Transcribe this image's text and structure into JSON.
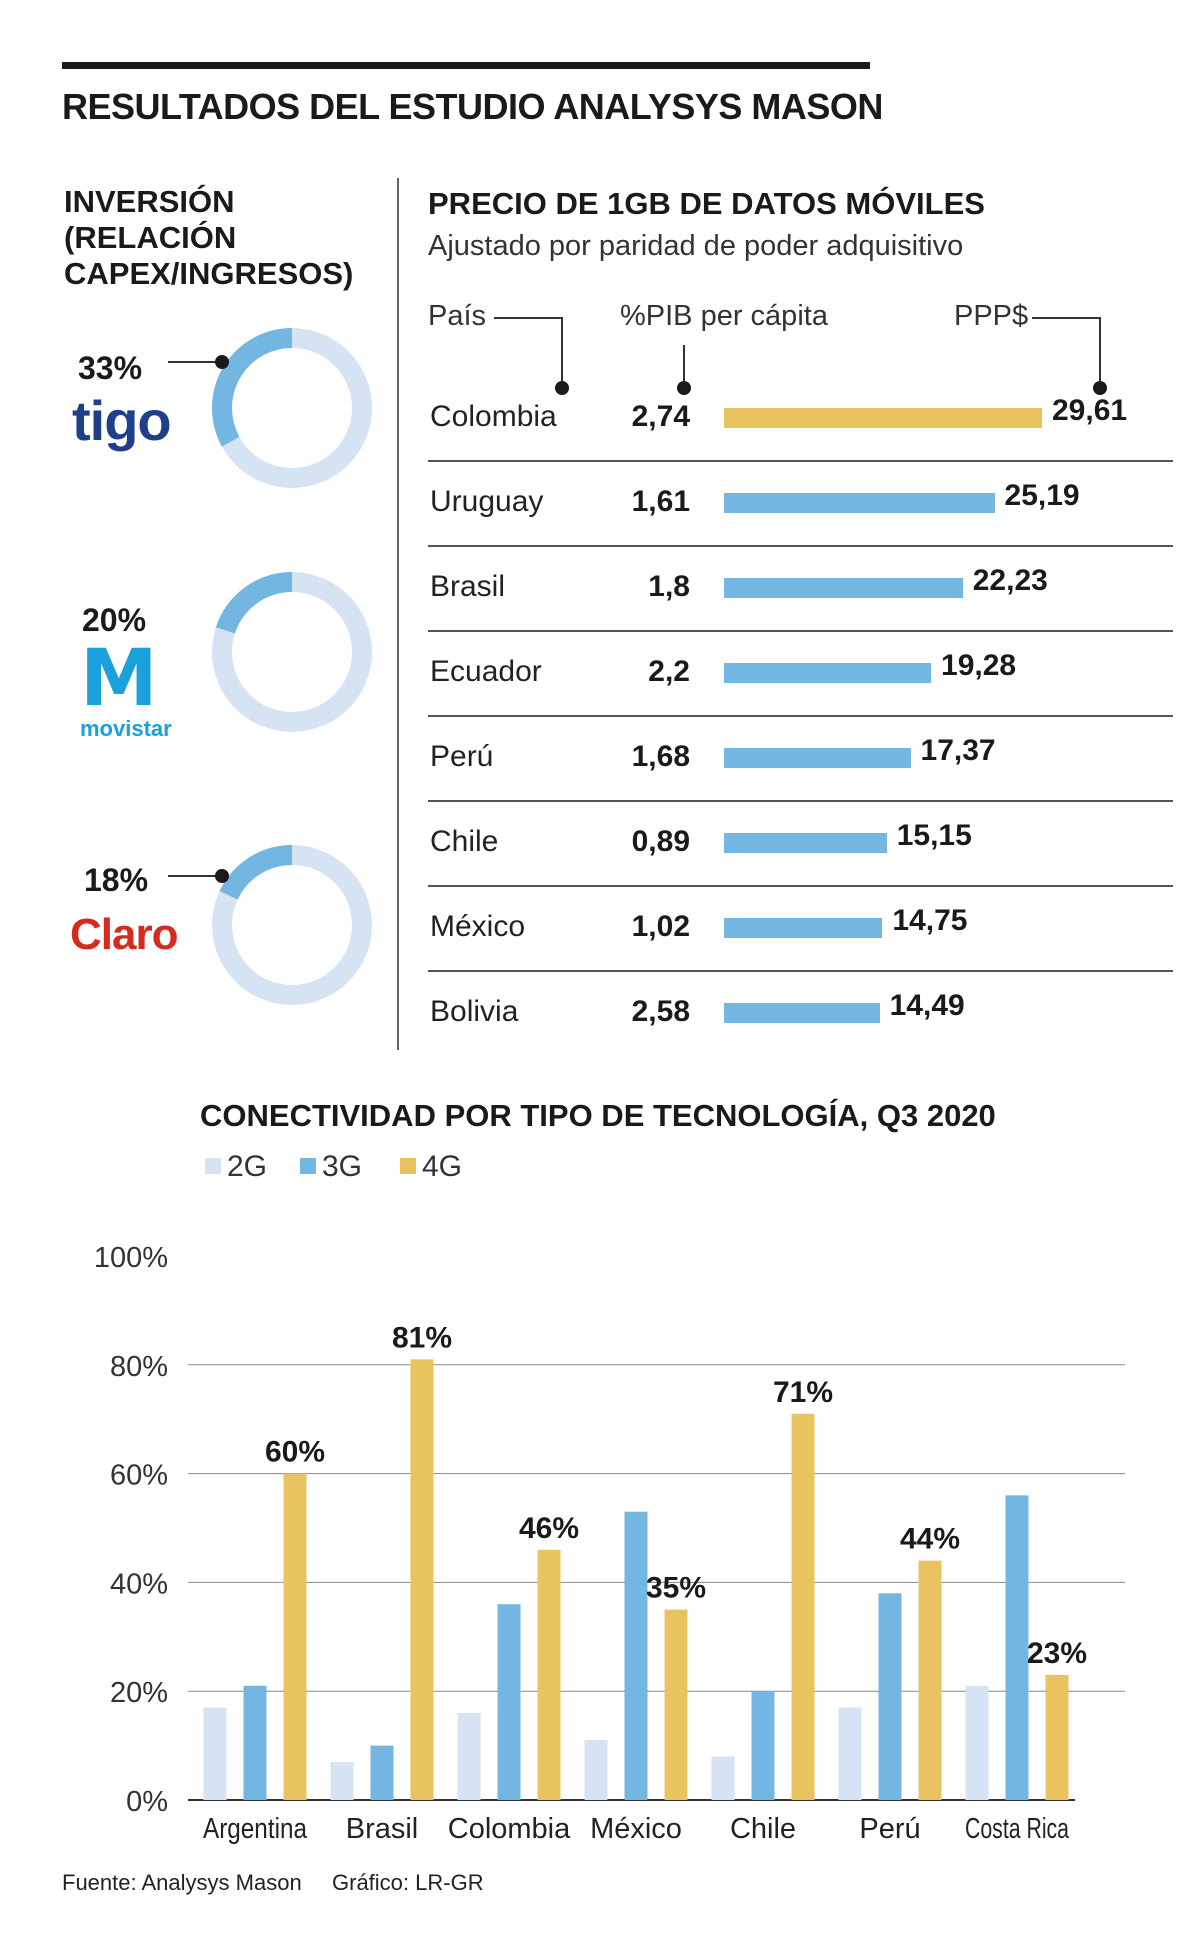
{
  "header": {
    "title": "RESULTADOS DEL ESTUDIO ANALYSYS MASON"
  },
  "investment": {
    "title_lines": [
      "INVERSIÓN",
      "(RELACIÓN",
      "CAPEX/INGRESOS)"
    ],
    "operators": [
      {
        "pct_label": "33%",
        "value": 33,
        "logo_text": "tigo"
      },
      {
        "pct_label": "20%",
        "value": 20,
        "logo_text": "movistar"
      },
      {
        "pct_label": "18%",
        "value": 18,
        "logo_text": "Claro"
      }
    ],
    "colors": {
      "fill": "#74b6e2",
      "track": "#d6e3f3"
    }
  },
  "price": {
    "title": "PRECIO DE 1GB DE DATOS MÓVILES",
    "subtitle": "Ajustado por paridad de poder adquisitivo",
    "headers": {
      "country": "País",
      "gdp": "%PIB per cápita",
      "ppp": "PPP$"
    },
    "rows": [
      {
        "country": "Colombia",
        "gdp": "2,74",
        "ppp_label": "29,61",
        "ppp": 29.61,
        "highlight": true
      },
      {
        "country": "Uruguay",
        "gdp": "1,61",
        "ppp_label": "25,19",
        "ppp": 25.19
      },
      {
        "country": "Brasil",
        "gdp": "1,8",
        "ppp_label": "22,23",
        "ppp": 22.23
      },
      {
        "country": "Ecuador",
        "gdp": "2,2",
        "ppp_label": "19,28",
        "ppp": 19.28
      },
      {
        "country": "Perú",
        "gdp": "1,68",
        "ppp_label": "17,37",
        "ppp": 17.37
      },
      {
        "country": "Chile",
        "gdp": "0,89",
        "ppp_label": "15,15",
        "ppp": 15.15
      },
      {
        "country": "México",
        "gdp": "1,02",
        "ppp_label": "14,75",
        "ppp": 14.75
      },
      {
        "country": "Bolivia",
        "gdp": "2,58",
        "ppp_label": "14,49",
        "ppp": 14.49
      }
    ],
    "colors": {
      "bar": "#74b6e2",
      "highlight": "#e8c35f"
    }
  },
  "chart_data": {
    "type": "bar",
    "title": "CONECTIVIDAD POR TIPO DE TECNOLOGÍA, Q3 2020",
    "categories": [
      "Argentina",
      "Brasil",
      "Colombia",
      "México",
      "Chile",
      "Perú",
      "Costa Rica"
    ],
    "series": [
      {
        "name": "2G",
        "color": "#d6e3f3",
        "values": [
          17,
          7,
          16,
          11,
          8,
          17,
          21
        ]
      },
      {
        "name": "3G",
        "color": "#74b6e2",
        "values": [
          21,
          10,
          36,
          53,
          20,
          38,
          56
        ]
      },
      {
        "name": "4G",
        "color": "#e8c35f",
        "values": [
          60,
          81,
          46,
          35,
          71,
          44,
          23
        ],
        "labels": [
          "60%",
          "81%",
          "46%",
          "35%",
          "71%",
          "44%",
          "23%"
        ]
      }
    ],
    "y_ticks": [
      "0%",
      "20%",
      "40%",
      "60%",
      "80%",
      "100%"
    ],
    "ylim": [
      0,
      100
    ],
    "xlabel": "",
    "ylabel": "",
    "grid": true,
    "legend": "top-left"
  },
  "footer": {
    "source": "Fuente: Analysys Mason",
    "credit": "Gráfico: LR-GR"
  }
}
